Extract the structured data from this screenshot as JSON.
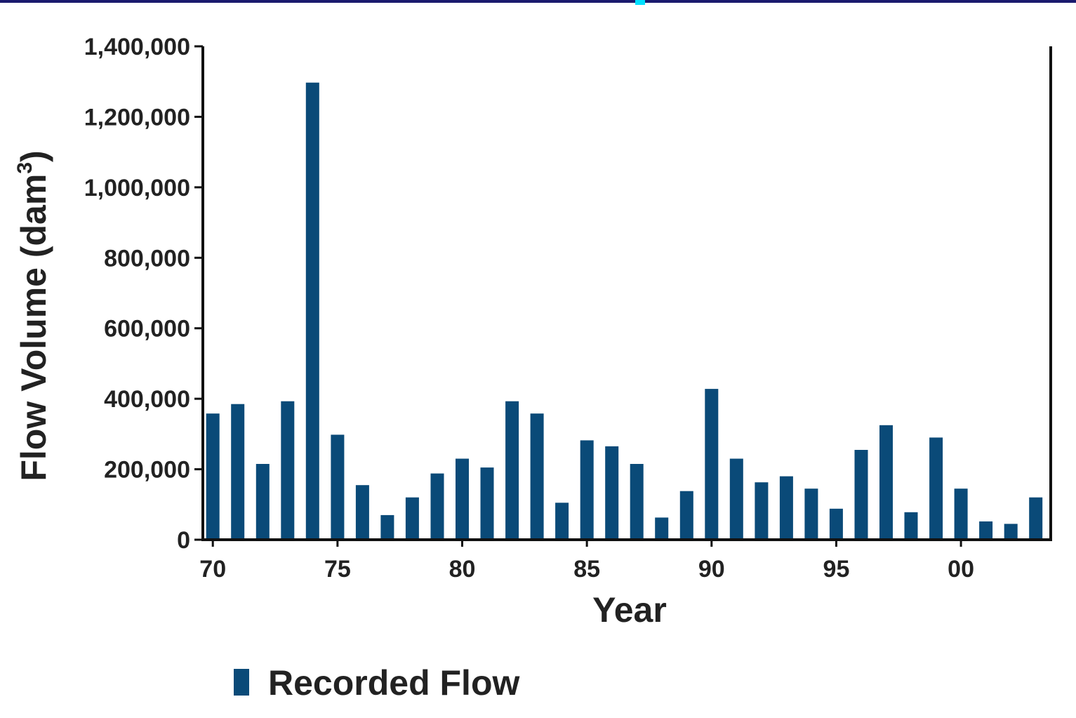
{
  "colors": {
    "bar": "#0a4a78",
    "axis": "#111111",
    "text": "#222222",
    "top_border": "#1a1a6e",
    "top_accent": "#00e0ff"
  },
  "chart_data": {
    "type": "bar",
    "title": "",
    "xlabel": "Year",
    "ylabel": "Flow Volume (dam",
    "ylabel_sup": "3",
    "ylabel_end": ")",
    "ylim": [
      0,
      1400000
    ],
    "yticks": [
      0,
      200000,
      400000,
      600000,
      800000,
      1000000,
      1200000,
      1400000
    ],
    "ytick_labels": [
      "0",
      "200,000",
      "400,000",
      "600,000",
      "800,000",
      "1,000,000",
      "1,200,000",
      "1,400,000"
    ],
    "xtick_labels": [
      "70",
      "75",
      "80",
      "85",
      "90",
      "95",
      "00"
    ],
    "xtick_positions": [
      1970,
      1975,
      1980,
      1985,
      1990,
      1995,
      2000
    ],
    "xlim": [
      1969.6,
      2003.6
    ],
    "categories": [
      1970,
      1971,
      1972,
      1973,
      1974,
      1975,
      1976,
      1977,
      1978,
      1979,
      1980,
      1981,
      1982,
      1983,
      1984,
      1985,
      1986,
      1987,
      1988,
      1989,
      1990,
      1991,
      1992,
      1993,
      1994,
      1995,
      1996,
      1997,
      1998,
      1999,
      2000,
      2001,
      2002,
      2003
    ],
    "series": [
      {
        "name": "Recorded Flow",
        "values": [
          358000,
          385000,
          215000,
          393000,
          1297000,
          298000,
          155000,
          70000,
          120000,
          188000,
          230000,
          205000,
          393000,
          358000,
          105000,
          282000,
          265000,
          215000,
          63000,
          138000,
          428000,
          230000,
          163000,
          180000,
          145000,
          88000,
          255000,
          325000,
          78000,
          290000,
          145000,
          52000,
          45000,
          120000
        ]
      }
    ],
    "legend": {
      "position": "bottom-center",
      "entries": [
        "Recorded Flow"
      ]
    },
    "grid": false
  }
}
